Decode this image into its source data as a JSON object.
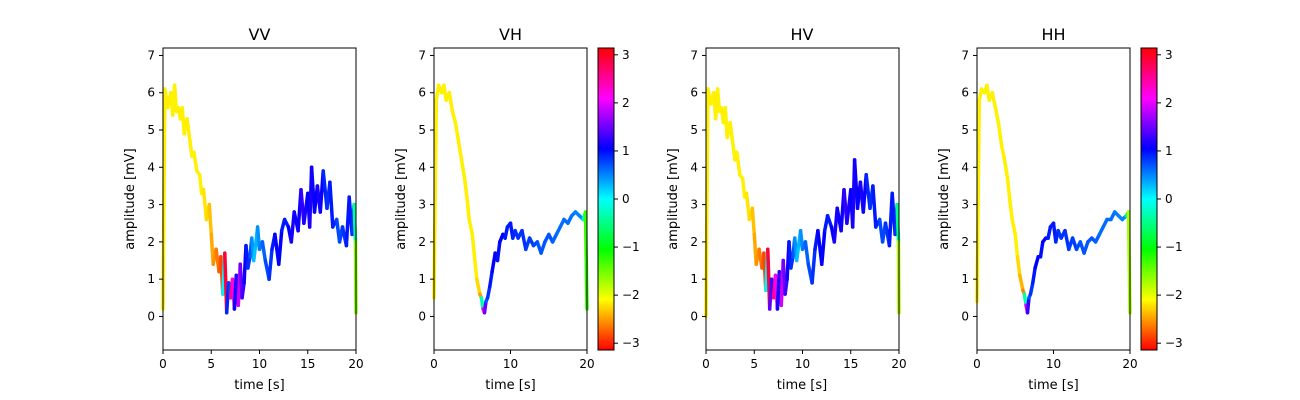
{
  "chart_data": [
    {
      "type": "line",
      "title": "VV",
      "xlabel": "time [s]",
      "ylabel": "amplitude [mV]",
      "xlim": [
        0,
        20
      ],
      "ylim": [
        -0.9,
        7.2
      ],
      "xticks": [
        0,
        5,
        10,
        15,
        20
      ],
      "yticks": [
        0,
        1,
        2,
        3,
        4,
        5,
        6,
        7
      ],
      "color_encoding": "phase (rad), hsv colormap",
      "colorbar": false,
      "series": [
        {
          "x": [
            0,
            0.2,
            0.5,
            0.8,
            1.0,
            1.2,
            1.4,
            1.6,
            1.8,
            2.0,
            2.2,
            2.5,
            2.8,
            3.0,
            3.2,
            3.5,
            3.8,
            4.0,
            4.2,
            4.5,
            4.8,
            5.0,
            5.2,
            5.5,
            5.8,
            6.0,
            6.2,
            6.4,
            6.6,
            6.8,
            7.0,
            7.2,
            7.4,
            7.6,
            7.8,
            8.0,
            8.2,
            8.4,
            8.6,
            8.8,
            9.0,
            9.2,
            9.4,
            9.6,
            9.8,
            10.0,
            10.3,
            10.6,
            11.0,
            11.3,
            11.6,
            12.0,
            12.3,
            12.6,
            13.0,
            13.3,
            13.6,
            14.0,
            14.3,
            14.6,
            15.0,
            15.2,
            15.4,
            15.7,
            16.0,
            16.3,
            16.6,
            17.0,
            17.3,
            17.6,
            18.0,
            18.3,
            18.6,
            19.0,
            19.3,
            19.6,
            19.8,
            19.95,
            20.0
          ],
          "y": [
            0.2,
            6.1,
            5.6,
            6.0,
            5.4,
            6.2,
            5.5,
            5.6,
            5.3,
            5.6,
            4.9,
            5.3,
            4.7,
            4.3,
            4.4,
            3.9,
            3.8,
            3.3,
            3.4,
            2.6,
            3.0,
            2.2,
            1.4,
            1.8,
            1.2,
            1.6,
            0.6,
            1.7,
            0.1,
            0.9,
            0.5,
            1.0,
            0.2,
            1.1,
            0.3,
            1.4,
            0.5,
            0.9,
            1.9,
            1.3,
            1.6,
            2.1,
            1.5,
            1.9,
            2.4,
            1.8,
            2.0,
            1.5,
            1.0,
            1.8,
            2.2,
            1.4,
            2.3,
            2.6,
            2.4,
            2.0,
            2.8,
            2.3,
            3.4,
            2.5,
            3.3,
            2.4,
            4.0,
            2.8,
            3.5,
            2.8,
            3.9,
            2.9,
            3.6,
            2.4,
            2.6,
            2.0,
            2.4,
            1.9,
            3.2,
            2.2,
            3.0,
            2.0,
            0.1
          ],
          "phase": [
            -2.2,
            -2.1,
            -2.2,
            -2.1,
            -2.2,
            -2.1,
            -2.2,
            -2.1,
            -2.2,
            -2.1,
            -2.2,
            -2.1,
            -2.2,
            -2.1,
            -2.2,
            -2.1,
            -2.2,
            -2.1,
            -2.2,
            -2.2,
            -2.3,
            -2.4,
            -2.5,
            -2.6,
            -2.7,
            -2.8,
            -2.9,
            3.0,
            2.8,
            -1.0,
            2.6,
            2.4,
            2.0,
            0.2,
            2.2,
            1.6,
            1.4,
            1.2,
            1.0,
            0.9,
            0.8,
            0.6,
            0.3,
            0.2,
            0.4,
            0.5,
            0.6,
            0.7,
            0.8,
            0.9,
            1.0,
            1.1,
            1.0,
            0.9,
            1.0,
            1.1,
            1.2,
            1.0,
            1.2,
            1.3,
            1.0,
            1.1,
            1.2,
            1.0,
            1.1,
            1.2,
            1.0,
            0.8,
            0.9,
            1.0,
            0.8,
            0.7,
            0.8,
            0.9,
            1.0,
            0.9,
            0.8,
            -1.6,
            -1.6
          ]
        }
      ]
    },
    {
      "type": "line",
      "title": "VH",
      "xlabel": "time [s]",
      "ylabel": "amplitude [mV]",
      "xlim": [
        0,
        20
      ],
      "ylim": [
        -0.9,
        7.2
      ],
      "xticks": [
        0,
        10,
        20
      ],
      "yticks": [
        0,
        1,
        2,
        3,
        4,
        5,
        6,
        7
      ],
      "color_encoding": "phase (rad), hsv colormap",
      "colorbar": true,
      "colorbar_ticks": [
        3,
        2,
        1,
        0,
        -1,
        -2,
        -3
      ],
      "colorbar_range": [
        -3.14159,
        3.14159
      ],
      "series": [
        {
          "x": [
            0,
            0.3,
            0.6,
            1.0,
            1.3,
            1.6,
            2.0,
            2.4,
            2.8,
            3.2,
            3.6,
            4.0,
            4.3,
            4.6,
            5.0,
            5.3,
            5.6,
            6.0,
            6.2,
            6.4,
            6.6,
            6.8,
            7.0,
            7.3,
            7.6,
            8.0,
            8.3,
            8.6,
            9.0,
            9.3,
            9.6,
            10.0,
            10.3,
            10.6,
            11.0,
            11.5,
            12.0,
            12.5,
            13.0,
            13.5,
            14.0,
            14.5,
            15.0,
            15.5,
            16.0,
            16.5,
            17.0,
            17.5,
            18.0,
            18.5,
            19.0,
            19.5,
            19.8,
            20.0
          ],
          "y": [
            0.5,
            5.8,
            6.2,
            6.0,
            6.2,
            5.8,
            6.0,
            5.5,
            5.2,
            4.7,
            4.2,
            3.7,
            3.2,
            2.6,
            2.2,
            1.6,
            1.0,
            0.6,
            0.5,
            0.2,
            0.1,
            0.4,
            0.5,
            0.8,
            1.2,
            1.7,
            1.5,
            2.0,
            2.2,
            2.1,
            2.4,
            2.5,
            2.1,
            2.3,
            2.1,
            2.3,
            1.8,
            2.1,
            1.9,
            2.0,
            1.7,
            2.0,
            2.2,
            2.0,
            2.2,
            2.4,
            2.6,
            2.5,
            2.7,
            2.8,
            2.7,
            2.6,
            2.8,
            0.2
          ],
          "phase": [
            -2.1,
            -2.2,
            -2.1,
            -2.2,
            -2.1,
            -2.2,
            -2.1,
            -2.2,
            -2.1,
            -2.2,
            -2.1,
            -2.2,
            -2.1,
            -2.2,
            -2.1,
            -2.2,
            -2.1,
            -2.4,
            -2.6,
            2.0,
            2.3,
            0.6,
            0.8,
            0.9,
            1.0,
            1.1,
            1.0,
            1.0,
            1.1,
            1.0,
            0.9,
            1.0,
            0.9,
            0.9,
            0.8,
            0.9,
            0.8,
            0.8,
            0.8,
            0.7,
            0.7,
            0.7,
            0.7,
            0.7,
            0.6,
            0.6,
            0.6,
            0.6,
            0.6,
            0.5,
            0.5,
            0.5,
            -1.2,
            -1.3
          ]
        }
      ]
    },
    {
      "type": "line",
      "title": "HV",
      "xlabel": "time [s]",
      "ylabel": "amplitude [mV]",
      "xlim": [
        0,
        20
      ],
      "ylim": [
        -0.9,
        7.2
      ],
      "xticks": [
        0,
        5,
        10,
        15,
        20
      ],
      "yticks": [
        0,
        1,
        2,
        3,
        4,
        5,
        6,
        7
      ],
      "color_encoding": "phase (rad), hsv colormap",
      "colorbar": false,
      "series": [
        {
          "x": [
            0,
            0.2,
            0.5,
            0.8,
            1.0,
            1.2,
            1.4,
            1.6,
            1.8,
            2.0,
            2.2,
            2.5,
            2.8,
            3.0,
            3.2,
            3.5,
            3.8,
            4.0,
            4.2,
            4.5,
            4.8,
            5.0,
            5.2,
            5.5,
            5.8,
            6.0,
            6.2,
            6.4,
            6.6,
            6.8,
            7.0,
            7.2,
            7.4,
            7.6,
            7.8,
            8.0,
            8.2,
            8.4,
            8.6,
            8.8,
            9.0,
            9.2,
            9.4,
            9.6,
            9.8,
            10.0,
            10.3,
            10.6,
            11.0,
            11.3,
            11.6,
            12.0,
            12.3,
            12.6,
            13.0,
            13.3,
            13.6,
            14.0,
            14.3,
            14.6,
            15.0,
            15.2,
            15.4,
            15.7,
            16.0,
            16.3,
            16.6,
            17.0,
            17.3,
            17.6,
            18.0,
            18.3,
            18.6,
            19.0,
            19.3,
            19.6,
            19.8,
            19.95,
            20.0
          ],
          "y": [
            0.0,
            6.1,
            5.7,
            6.0,
            5.3,
            6.1,
            5.5,
            5.6,
            5.2,
            5.6,
            4.8,
            5.2,
            4.6,
            4.2,
            4.4,
            3.8,
            3.7,
            3.2,
            3.3,
            2.6,
            2.9,
            2.2,
            1.4,
            1.8,
            1.3,
            1.7,
            0.7,
            1.8,
            0.2,
            1.0,
            0.5,
            1.1,
            0.2,
            1.2,
            0.3,
            1.5,
            0.6,
            1.0,
            2.0,
            1.3,
            1.6,
            2.1,
            1.5,
            1.9,
            2.3,
            1.8,
            2.0,
            1.4,
            0.9,
            1.8,
            2.3,
            1.4,
            2.3,
            2.7,
            2.4,
            2.0,
            2.9,
            2.3,
            3.4,
            2.5,
            3.4,
            2.4,
            4.2,
            2.9,
            3.6,
            2.8,
            3.8,
            2.9,
            3.5,
            2.4,
            2.6,
            2.0,
            2.5,
            1.9,
            3.3,
            2.2,
            3.0,
            2.0,
            0.1
          ],
          "phase": [
            -2.2,
            -2.1,
            -2.2,
            -2.1,
            -2.2,
            -2.1,
            -2.2,
            -2.1,
            -2.2,
            -2.1,
            -2.2,
            -2.1,
            -2.2,
            -2.1,
            -2.2,
            -2.1,
            -2.2,
            -2.1,
            -2.2,
            -2.2,
            -2.3,
            -2.4,
            -2.5,
            -2.6,
            -2.7,
            -2.8,
            -2.9,
            3.0,
            2.8,
            0.0,
            2.6,
            2.4,
            2.0,
            0.3,
            2.2,
            1.6,
            1.4,
            1.2,
            1.0,
            0.9,
            0.8,
            0.6,
            0.3,
            0.2,
            0.4,
            0.5,
            0.6,
            0.7,
            0.8,
            0.9,
            1.0,
            1.1,
            1.0,
            0.9,
            1.0,
            1.1,
            1.2,
            1.0,
            1.2,
            1.3,
            1.0,
            1.1,
            1.2,
            1.0,
            1.1,
            1.2,
            1.0,
            0.8,
            0.9,
            1.0,
            0.8,
            0.7,
            0.8,
            0.9,
            1.0,
            0.9,
            0.8,
            -1.8,
            -1.8
          ]
        }
      ]
    },
    {
      "type": "line",
      "title": "HH",
      "xlabel": "time [s]",
      "ylabel": "amplitude [mV]",
      "xlim": [
        0,
        20
      ],
      "ylim": [
        -0.9,
        7.2
      ],
      "xticks": [
        0,
        10,
        20
      ],
      "yticks": [
        0,
        1,
        2,
        3,
        4,
        5,
        6,
        7
      ],
      "color_encoding": "phase (rad), hsv colormap",
      "colorbar": true,
      "colorbar_ticks": [
        3,
        2,
        1,
        0,
        -1,
        -2,
        -3
      ],
      "colorbar_range": [
        -3.14159,
        3.14159
      ],
      "series": [
        {
          "x": [
            0,
            0.3,
            0.6,
            1.0,
            1.3,
            1.6,
            2.0,
            2.4,
            2.8,
            3.2,
            3.6,
            4.0,
            4.3,
            4.6,
            5.0,
            5.3,
            5.6,
            6.0,
            6.2,
            6.4,
            6.6,
            6.8,
            7.0,
            7.3,
            7.6,
            8.0,
            8.3,
            8.6,
            9.0,
            9.3,
            9.6,
            10.0,
            10.3,
            10.6,
            11.0,
            11.5,
            12.0,
            12.5,
            13.0,
            13.5,
            14.0,
            14.5,
            15.0,
            15.5,
            16.0,
            16.5,
            17.0,
            17.5,
            18.0,
            18.5,
            19.0,
            19.5,
            19.8,
            20.0
          ],
          "y": [
            0.4,
            5.8,
            6.1,
            6.0,
            6.2,
            5.8,
            6.0,
            5.6,
            5.2,
            4.6,
            4.2,
            3.7,
            3.1,
            2.6,
            2.2,
            1.6,
            1.1,
            0.7,
            0.6,
            0.3,
            0.1,
            0.5,
            0.6,
            0.9,
            1.3,
            1.6,
            1.6,
            2.0,
            2.1,
            2.1,
            2.4,
            2.5,
            2.0,
            2.3,
            2.1,
            2.3,
            1.8,
            2.1,
            1.8,
            2.0,
            1.7,
            2.0,
            2.1,
            2.0,
            2.2,
            2.4,
            2.6,
            2.6,
            2.8,
            2.7,
            2.6,
            2.7,
            2.8,
            0.1
          ],
          "phase": [
            -2.1,
            -2.2,
            -2.1,
            -2.2,
            -2.1,
            -2.2,
            -2.1,
            -2.2,
            -2.1,
            -2.2,
            -2.1,
            -2.2,
            -2.1,
            -2.2,
            -2.1,
            -2.2,
            -2.3,
            -2.5,
            -2.7,
            2.0,
            1.9,
            0.6,
            0.8,
            0.9,
            1.0,
            1.1,
            1.0,
            1.0,
            1.1,
            1.0,
            0.9,
            1.0,
            0.9,
            0.9,
            0.8,
            0.9,
            0.8,
            0.8,
            0.8,
            0.7,
            0.7,
            0.7,
            0.7,
            0.7,
            0.6,
            0.6,
            0.6,
            0.6,
            0.6,
            0.5,
            0.5,
            0.5,
            -1.7,
            -1.8
          ]
        }
      ]
    }
  ]
}
